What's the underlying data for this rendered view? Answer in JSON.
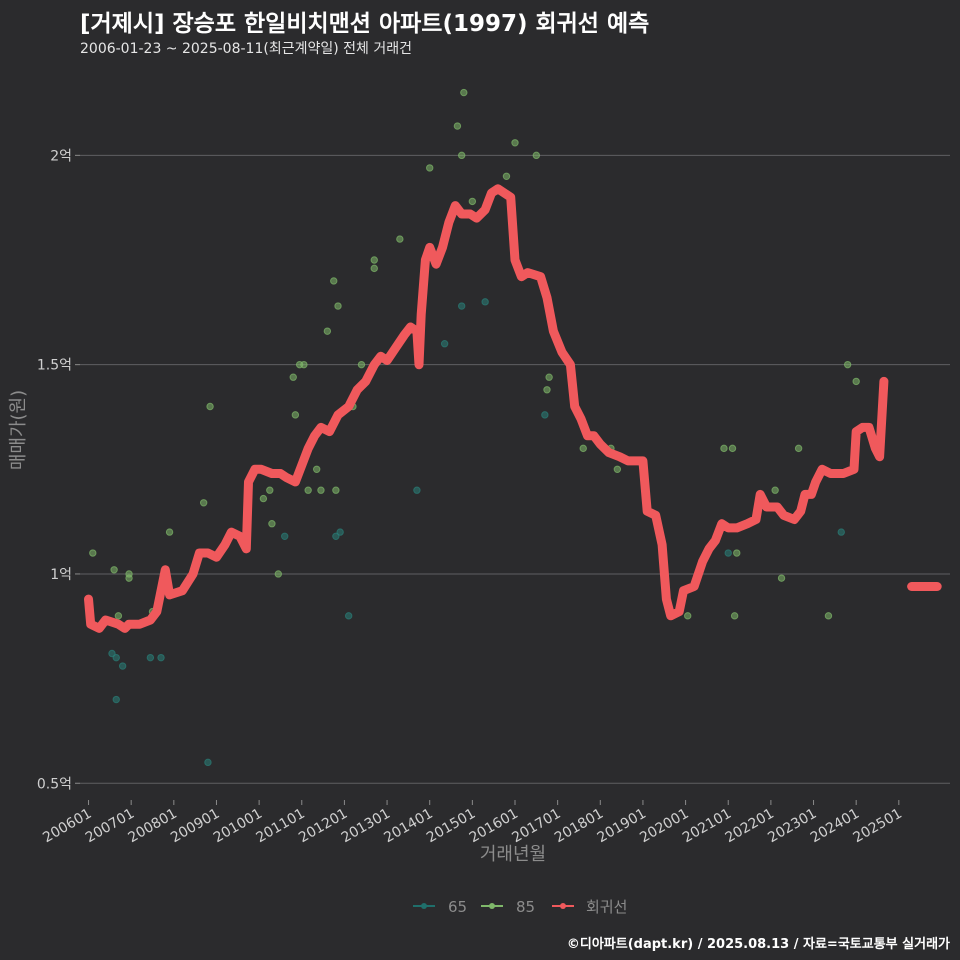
{
  "title": "[거제시] 장승포 한일비치맨션 아파트(1997) 회귀선 예측",
  "subtitle": "2006-01-23 ~ 2025-08-11(최근계약일) 전체 거래건",
  "footer": "©디아파트(dapt.kr) / 2025.08.13 / 자료=국토교통부 실거래가",
  "chart_data": {
    "type": "scatter+line",
    "xlabel": "거래년월",
    "ylabel": "매매가(원)",
    "ylim": [
      0.46,
      2.18
    ],
    "xlim": [
      2005.8,
      2026.2
    ],
    "y_ticks": [
      {
        "value": 0.5,
        "label": "0.5억"
      },
      {
        "value": 1.0,
        "label": "1억"
      },
      {
        "value": 1.5,
        "label": "1.5억"
      },
      {
        "value": 2.0,
        "label": "2억"
      }
    ],
    "x_ticks": [
      {
        "value": 2006,
        "label": "200601"
      },
      {
        "value": 2007,
        "label": "200701"
      },
      {
        "value": 2008,
        "label": "200801"
      },
      {
        "value": 2009,
        "label": "200901"
      },
      {
        "value": 2010,
        "label": "201001"
      },
      {
        "value": 2011,
        "label": "201101"
      },
      {
        "value": 2012,
        "label": "201201"
      },
      {
        "value": 2013,
        "label": "201301"
      },
      {
        "value": 2014,
        "label": "201401"
      },
      {
        "value": 2015,
        "label": "201501"
      },
      {
        "value": 2016,
        "label": "201601"
      },
      {
        "value": 2017,
        "label": "201701"
      },
      {
        "value": 2018,
        "label": "201801"
      },
      {
        "value": 2019,
        "label": "201901"
      },
      {
        "value": 2020,
        "label": "202001"
      },
      {
        "value": 2021,
        "label": "202101"
      },
      {
        "value": 2022,
        "label": "202201"
      },
      {
        "value": 2023,
        "label": "202301"
      },
      {
        "value": 2024,
        "label": "202401"
      },
      {
        "value": 2025,
        "label": "202501"
      }
    ],
    "legend": [
      {
        "name": "65",
        "color": "#1f6f6b"
      },
      {
        "name": "85",
        "color": "#7fb86a"
      },
      {
        "name": "회귀선",
        "color": "#f0595c"
      }
    ],
    "series": [
      {
        "name": "65",
        "color": "#2a7f78",
        "points": [
          [
            2006.55,
            0.81
          ],
          [
            2006.65,
            0.8
          ],
          [
            2006.65,
            0.7
          ],
          [
            2006.8,
            0.78
          ],
          [
            2007.45,
            0.8
          ],
          [
            2007.7,
            0.8
          ],
          [
            2008.8,
            0.55
          ],
          [
            2010.6,
            1.09
          ],
          [
            2011.8,
            1.09
          ],
          [
            2011.9,
            1.1
          ],
          [
            2012.1,
            0.9
          ],
          [
            2013.7,
            1.2
          ],
          [
            2014.35,
            1.55
          ],
          [
            2014.75,
            1.64
          ],
          [
            2015.3,
            1.65
          ],
          [
            2016.7,
            1.38
          ],
          [
            2021.0,
            1.05
          ],
          [
            2023.65,
            1.1
          ]
        ]
      },
      {
        "name": "85",
        "color": "#7fb86a",
        "points": [
          [
            2006.1,
            1.05
          ],
          [
            2006.6,
            1.01
          ],
          [
            2006.7,
            0.9
          ],
          [
            2006.95,
            1.0
          ],
          [
            2006.95,
            0.99
          ],
          [
            2007.5,
            0.91
          ],
          [
            2007.9,
            1.1
          ],
          [
            2008.7,
            1.17
          ],
          [
            2008.85,
            1.4
          ],
          [
            2010.1,
            1.18
          ],
          [
            2010.25,
            1.2
          ],
          [
            2010.3,
            1.12
          ],
          [
            2010.45,
            1.0
          ],
          [
            2010.8,
            1.47
          ],
          [
            2010.85,
            1.38
          ],
          [
            2010.95,
            1.5
          ],
          [
            2011.05,
            1.5
          ],
          [
            2011.15,
            1.2
          ],
          [
            2011.35,
            1.25
          ],
          [
            2011.45,
            1.2
          ],
          [
            2011.6,
            1.58
          ],
          [
            2011.75,
            1.7
          ],
          [
            2011.8,
            1.2
          ],
          [
            2011.85,
            1.64
          ],
          [
            2012.2,
            1.4
          ],
          [
            2012.4,
            1.5
          ],
          [
            2012.7,
            1.75
          ],
          [
            2012.7,
            1.73
          ],
          [
            2013.3,
            1.8
          ],
          [
            2014.0,
            1.97
          ],
          [
            2014.65,
            2.07
          ],
          [
            2014.75,
            2.0
          ],
          [
            2014.8,
            2.15
          ],
          [
            2015.0,
            1.89
          ],
          [
            2015.8,
            1.95
          ],
          [
            2016.0,
            2.03
          ],
          [
            2016.5,
            2.0
          ],
          [
            2016.75,
            1.44
          ],
          [
            2016.8,
            1.47
          ],
          [
            2017.6,
            1.3
          ],
          [
            2018.25,
            1.3
          ],
          [
            2018.4,
            1.25
          ],
          [
            2020.05,
            0.9
          ],
          [
            2020.9,
            1.3
          ],
          [
            2021.1,
            1.3
          ],
          [
            2021.15,
            0.9
          ],
          [
            2021.2,
            1.05
          ],
          [
            2022.1,
            1.2
          ],
          [
            2022.25,
            0.99
          ],
          [
            2022.65,
            1.3
          ],
          [
            2023.35,
            0.9
          ],
          [
            2023.8,
            1.5
          ],
          [
            2024.0,
            1.46
          ]
        ]
      }
    ],
    "regression_line": {
      "name": "회귀선",
      "color": "#f0595c",
      "segments": [
        [
          [
            2006.0,
            0.94
          ],
          [
            2006.05,
            0.88
          ],
          [
            2006.25,
            0.87
          ],
          [
            2006.4,
            0.89
          ],
          [
            2006.7,
            0.88
          ],
          [
            2006.85,
            0.87
          ],
          [
            2006.95,
            0.88
          ],
          [
            2007.2,
            0.88
          ],
          [
            2007.45,
            0.89
          ],
          [
            2007.6,
            0.91
          ],
          [
            2007.8,
            1.01
          ],
          [
            2007.9,
            0.95
          ],
          [
            2008.2,
            0.96
          ],
          [
            2008.45,
            1.0
          ],
          [
            2008.6,
            1.05
          ],
          [
            2008.8,
            1.05
          ],
          [
            2009.0,
            1.04
          ],
          [
            2009.2,
            1.07
          ],
          [
            2009.35,
            1.1
          ],
          [
            2009.55,
            1.09
          ],
          [
            2009.7,
            1.06
          ],
          [
            2009.75,
            1.22
          ],
          [
            2009.9,
            1.25
          ],
          [
            2010.05,
            1.25
          ],
          [
            2010.3,
            1.24
          ],
          [
            2010.5,
            1.24
          ],
          [
            2010.65,
            1.23
          ],
          [
            2010.85,
            1.22
          ],
          [
            2011.0,
            1.26
          ],
          [
            2011.15,
            1.3
          ],
          [
            2011.3,
            1.33
          ],
          [
            2011.45,
            1.35
          ],
          [
            2011.65,
            1.34
          ],
          [
            2011.85,
            1.38
          ],
          [
            2012.1,
            1.4
          ],
          [
            2012.3,
            1.44
          ],
          [
            2012.5,
            1.46
          ],
          [
            2012.7,
            1.5
          ],
          [
            2012.85,
            1.52
          ],
          [
            2013.0,
            1.51
          ],
          [
            2013.2,
            1.54
          ],
          [
            2013.4,
            1.57
          ],
          [
            2013.55,
            1.59
          ],
          [
            2013.7,
            1.58
          ],
          [
            2013.75,
            1.5
          ],
          [
            2013.8,
            1.62
          ],
          [
            2013.9,
            1.75
          ],
          [
            2014.0,
            1.78
          ],
          [
            2014.15,
            1.74
          ],
          [
            2014.3,
            1.78
          ],
          [
            2014.45,
            1.84
          ],
          [
            2014.6,
            1.88
          ],
          [
            2014.75,
            1.86
          ],
          [
            2014.95,
            1.86
          ],
          [
            2015.1,
            1.85
          ],
          [
            2015.3,
            1.87
          ],
          [
            2015.45,
            1.91
          ],
          [
            2015.6,
            1.92
          ],
          [
            2015.75,
            1.91
          ],
          [
            2015.9,
            1.9
          ],
          [
            2016.0,
            1.75
          ],
          [
            2016.15,
            1.71
          ],
          [
            2016.3,
            1.72
          ],
          [
            2016.6,
            1.71
          ],
          [
            2016.75,
            1.66
          ],
          [
            2016.9,
            1.58
          ],
          [
            2017.1,
            1.53
          ],
          [
            2017.3,
            1.5
          ],
          [
            2017.4,
            1.4
          ],
          [
            2017.55,
            1.37
          ],
          [
            2017.7,
            1.33
          ],
          [
            2017.85,
            1.33
          ],
          [
            2018.0,
            1.31
          ],
          [
            2018.2,
            1.29
          ],
          [
            2018.45,
            1.28
          ],
          [
            2018.65,
            1.27
          ],
          [
            2018.85,
            1.27
          ],
          [
            2019.0,
            1.27
          ],
          [
            2019.1,
            1.15
          ],
          [
            2019.3,
            1.14
          ],
          [
            2019.45,
            1.07
          ],
          [
            2019.55,
            0.94
          ],
          [
            2019.65,
            0.9
          ],
          [
            2019.85,
            0.91
          ],
          [
            2019.95,
            0.96
          ],
          [
            2020.2,
            0.97
          ],
          [
            2020.4,
            1.03
          ],
          [
            2020.55,
            1.06
          ],
          [
            2020.7,
            1.08
          ],
          [
            2020.85,
            1.12
          ],
          [
            2021.0,
            1.11
          ],
          [
            2021.2,
            1.11
          ],
          [
            2021.45,
            1.12
          ],
          [
            2021.65,
            1.13
          ],
          [
            2021.75,
            1.19
          ],
          [
            2021.9,
            1.16
          ],
          [
            2022.15,
            1.16
          ],
          [
            2022.3,
            1.14
          ],
          [
            2022.55,
            1.13
          ],
          [
            2022.7,
            1.15
          ],
          [
            2022.8,
            1.19
          ],
          [
            2022.95,
            1.19
          ],
          [
            2023.05,
            1.22
          ],
          [
            2023.2,
            1.25
          ],
          [
            2023.4,
            1.24
          ],
          [
            2023.7,
            1.24
          ],
          [
            2023.95,
            1.25
          ],
          [
            2024.0,
            1.34
          ],
          [
            2024.15,
            1.35
          ],
          [
            2024.3,
            1.35
          ],
          [
            2024.45,
            1.3
          ],
          [
            2024.55,
            1.28
          ],
          [
            2024.65,
            1.46
          ]
        ],
        [
          [
            2025.3,
            0.97
          ],
          [
            2025.55,
            0.97
          ],
          [
            2025.9,
            0.97
          ]
        ]
      ]
    }
  }
}
